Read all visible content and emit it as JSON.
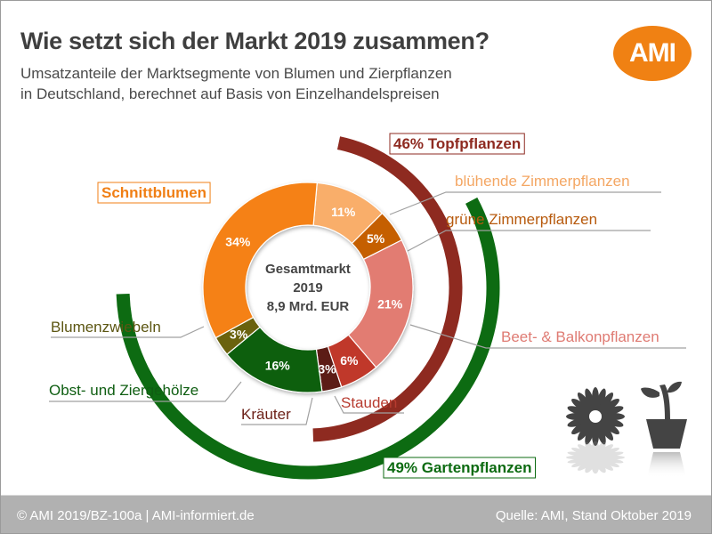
{
  "header": {
    "title": "Wie setzt sich der Markt 2019 zusammen?",
    "subtitle_line1": "Umsatzanteile der Marktsegmente von Blumen und Zierpflanzen",
    "subtitle_line2": "in Deutschland, berechnet auf Basis von Einzelhandelspreisen",
    "logo_text": "AMI",
    "logo_color": "#f08113"
  },
  "footer": {
    "left": "© AMI 2019/BZ-100a | AMI-informiert.de",
    "right": "Quelle: AMI, Stand Oktober 2019"
  },
  "icons": [
    "flower-icon",
    "potted-plant-icon"
  ],
  "chart_data": {
    "type": "pie",
    "title": "Wie setzt sich der Markt 2019 zusammen?",
    "center_label": {
      "line1": "Gesamtmarkt",
      "line2": "2019",
      "line3": "8,9 Mrd. EUR"
    },
    "segments": [
      {
        "name": "blühende Zimmerpflanzen",
        "value": 11,
        "label": "11%",
        "color": "#f9ae6b",
        "text_color": "#f4a764"
      },
      {
        "name": "grüne Zimmerpflanzen",
        "value": 5,
        "label": "5%",
        "color": "#c55f05",
        "text_color": "#b75a0d"
      },
      {
        "name": "Beet- & Balkonpflanzen",
        "value": 21,
        "label": "21%",
        "color": "#e27b72",
        "text_color": "#df7b73"
      },
      {
        "name": "Stauden",
        "value": 6,
        "label": "6%",
        "color": "#c0392b",
        "text_color": "#b73b2f"
      },
      {
        "name": "Kräuter",
        "value": 3,
        "label": "3%",
        "color": "#5c1a12",
        "text_color": "#6b1f16"
      },
      {
        "name": "Obst- und Ziergehölze",
        "value": 16,
        "label": "16%",
        "color": "#0b5e0b",
        "text_color": "#0f5e12"
      },
      {
        "name": "Blumenzwiebeln",
        "value": 3,
        "label": "3%",
        "color": "#6b6209",
        "text_color": "#5c5612"
      },
      {
        "name": "Schnittblumen",
        "value": 34,
        "label": "34%",
        "color": "#f58113",
        "text_color": "#f07f15"
      }
    ],
    "groups": [
      {
        "name": "Topfpflanzen",
        "value": 46,
        "label": "46% Topfpflanzen",
        "color": "#8e2a20"
      },
      {
        "name": "Gartenpflanzen",
        "value": 49,
        "label": "49% Gartenpflanzen",
        "color": "#0d6b12"
      }
    ]
  }
}
